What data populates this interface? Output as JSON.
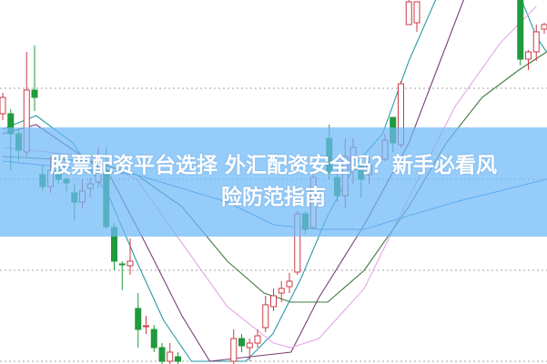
{
  "headline": {
    "line1": "股票配资平台选择 外汇配资安全吗？新手必看风",
    "line2": "险防范指南"
  },
  "colors": {
    "up": "#cc3b45",
    "down": "#1f9a3c",
    "grid": "#b5b5b5",
    "banner": "#6eb9f8",
    "ma_lines": [
      "#2a9aa8",
      "#7a3f7a",
      "#e6a6e6",
      "#3f7a3f",
      "#3a8fd0"
    ]
  },
  "chart_data": {
    "type": "candlestick",
    "title": "",
    "grid": true,
    "gridlines": [
      0,
      10,
      20,
      30
    ],
    "ylim": [
      0,
      40
    ],
    "candles": [
      {
        "t": 0,
        "o": 27.2,
        "c": 29.0,
        "h": 29.5,
        "l": 26.5
      },
      {
        "t": 1,
        "o": 27.2,
        "c": 25.0,
        "h": 27.7,
        "l": 21.0
      },
      {
        "t": 2,
        "o": 25.0,
        "c": 23.2,
        "h": 25.5,
        "l": 22.0
      },
      {
        "t": 3,
        "o": 23.0,
        "c": 29.8,
        "h": 34.0,
        "l": 22.5
      },
      {
        "t": 4,
        "o": 29.8,
        "c": 29.0,
        "h": 34.7,
        "l": 27.5
      },
      {
        "t": 5,
        "o": 20.5,
        "c": 19.2,
        "h": 21.5,
        "l": 18.7
      },
      {
        "t": 6,
        "o": 19.2,
        "c": 21.0,
        "h": 22.5,
        "l": 18.5
      },
      {
        "t": 7,
        "o": 21.0,
        "c": 20.0,
        "h": 21.5,
        "l": 19.5
      },
      {
        "t": 8,
        "o": 20.0,
        "c": 19.6,
        "h": 20.2,
        "l": 18.7
      },
      {
        "t": 9,
        "o": 18.5,
        "c": 17.5,
        "h": 19.5,
        "l": 15.5
      },
      {
        "t": 10,
        "o": 17.5,
        "c": 18.7,
        "h": 20.0,
        "l": 16.8
      },
      {
        "t": 11,
        "o": 19.0,
        "c": 19.5,
        "h": 20.2,
        "l": 18.0
      },
      {
        "t": 12,
        "o": 19.7,
        "c": 20.8,
        "h": 23.5,
        "l": 19.0
      },
      {
        "t": 13,
        "o": 21.0,
        "c": 14.8,
        "h": 23.5,
        "l": 14.5
      },
      {
        "t": 14,
        "o": 14.7,
        "c": 11.0,
        "h": 15.2,
        "l": 10.0
      },
      {
        "t": 15,
        "o": 10.7,
        "c": 10.6,
        "h": 11.0,
        "l": 7.8
      },
      {
        "t": 16,
        "o": 10.5,
        "c": 11.0,
        "h": 13.5,
        "l": 9.5
      },
      {
        "t": 17,
        "o": 5.8,
        "c": 3.5,
        "h": 7.5,
        "l": 1.5
      },
      {
        "t": 18,
        "o": 3.8,
        "c": 3.9,
        "h": 5.0,
        "l": 3.0
      },
      {
        "t": 19,
        "o": 3.5,
        "c": 1.5,
        "h": 4.0,
        "l": 1.0
      },
      {
        "t": 20,
        "o": 1.5,
        "c": 0.0,
        "h": 2.0,
        "l": -1.0
      },
      {
        "t": 21,
        "o": 0.0,
        "c": 1.0,
        "h": 2.0,
        "l": -1.0
      },
      {
        "t": 22,
        "o": 0.5,
        "c": 0.0,
        "h": 1.0,
        "l": -1.0
      },
      {
        "t": 29,
        "o": 0.0,
        "c": 2.5,
        "h": 3.5,
        "l": -1.0
      },
      {
        "t": 30,
        "o": 2.5,
        "c": 1.7,
        "h": 3.0,
        "l": 1.0
      },
      {
        "t": 31,
        "o": 1.5,
        "c": 2.0,
        "h": 2.5,
        "l": 0.0
      },
      {
        "t": 32,
        "o": 2.0,
        "c": 2.8,
        "h": 3.5,
        "l": 1.5
      },
      {
        "t": 33,
        "o": 3.7,
        "c": 6.2,
        "h": 7.2,
        "l": 3.2
      },
      {
        "t": 34,
        "o": 6.0,
        "c": 7.2,
        "h": 8.0,
        "l": 5.5
      },
      {
        "t": 35,
        "o": 7.5,
        "c": 8.0,
        "h": 8.8,
        "l": 6.5
      },
      {
        "t": 36,
        "o": 8.2,
        "c": 8.8,
        "h": 9.7,
        "l": 7.5
      },
      {
        "t": 37,
        "o": 9.8,
        "c": 16.2,
        "h": 16.5,
        "l": 9.5
      },
      {
        "t": 38,
        "o": 16.2,
        "c": 14.5,
        "h": 16.5,
        "l": 14.0
      },
      {
        "t": 39,
        "o": 14.7,
        "c": 20.2,
        "h": 21.0,
        "l": 14.5
      },
      {
        "t": 41,
        "o": 24.5,
        "c": 20.7,
        "h": 26.0,
        "l": 20.0
      },
      {
        "t": 42,
        "o": 20.2,
        "c": 18.2,
        "h": 21.0,
        "l": 17.5
      },
      {
        "t": 43,
        "o": 18.2,
        "c": 22.5,
        "h": 24.5,
        "l": 16.8
      },
      {
        "t": 44,
        "o": 21.0,
        "c": 23.5,
        "h": 24.5,
        "l": 19.5
      },
      {
        "t": 45,
        "o": 21.5,
        "c": 20.0,
        "h": 22.0,
        "l": 18.0
      },
      {
        "t": 46,
        "o": 20.5,
        "c": 21.5,
        "h": 22.5,
        "l": 19.5
      },
      {
        "t": 48,
        "o": 22.2,
        "c": 24.3,
        "h": 25.0,
        "l": 22.0
      },
      {
        "t": 49,
        "o": 26.8,
        "c": 24.0,
        "h": 26.8,
        "l": 23.0
      },
      {
        "t": 50,
        "o": 23.8,
        "c": 30.5,
        "h": 30.8,
        "l": 23.5
      },
      {
        "t": 51,
        "o": 37.0,
        "c": 39.5,
        "h": 40.0,
        "l": 37.0
      },
      {
        "t": 52,
        "o": 37.2,
        "c": 39.5,
        "h": 39.5,
        "l": 36.2
      },
      {
        "t": 65,
        "o": 40.0,
        "c": 33.2,
        "h": 40.0,
        "l": 32.5
      },
      {
        "t": 66,
        "o": 33.2,
        "c": 34.0,
        "h": 34.2,
        "l": 32.0
      },
      {
        "t": 67,
        "o": 34.0,
        "c": 36.2,
        "h": 37.0,
        "l": 33.0
      },
      {
        "t": 68,
        "o": 36.5,
        "c": 37.0,
        "h": 37.2,
        "l": 36.0
      }
    ],
    "moving_averages": [
      {
        "points": [
          [
            0,
            25.5
          ],
          [
            4.2,
            27
          ],
          [
            8.8,
            24
          ],
          [
            13.4,
            18
          ],
          [
            16.8,
            11
          ],
          [
            20.2,
            4.5
          ],
          [
            23.7,
            0
          ],
          [
            30.5,
            0
          ],
          [
            33.9,
            3
          ],
          [
            37.4,
            9
          ],
          [
            40.8,
            16
          ],
          [
            44.2,
            21.5
          ],
          [
            47.7,
            25
          ],
          [
            51,
            33
          ],
          [
            54.5,
            40
          ],
          [
            65,
            40
          ],
          [
            67.1,
            35.5
          ],
          [
            68.3,
            34
          ]
        ]
      },
      {
        "points": [
          [
            0,
            25
          ],
          [
            4.2,
            26
          ],
          [
            13.4,
            20.5
          ],
          [
            17.9,
            13
          ],
          [
            22.5,
            5
          ],
          [
            26,
            0
          ],
          [
            36.2,
            1
          ],
          [
            39.7,
            7
          ],
          [
            45.4,
            15
          ],
          [
            51,
            24
          ],
          [
            54.5,
            32
          ],
          [
            58,
            40
          ]
        ]
      },
      {
        "points": [
          [
            0,
            23.5
          ],
          [
            11.1,
            22.5
          ],
          [
            16.8,
            20
          ],
          [
            22.5,
            13
          ],
          [
            28.2,
            6
          ],
          [
            34,
            2
          ],
          [
            36.2,
            1.5
          ],
          [
            39.7,
            2.5
          ],
          [
            45.4,
            8
          ],
          [
            51,
            18
          ],
          [
            56.8,
            28
          ],
          [
            62.5,
            35
          ],
          [
            67,
            39
          ]
        ]
      },
      {
        "points": [
          [
            0,
            22.5
          ],
          [
            11.1,
            22
          ],
          [
            16.8,
            20.5
          ],
          [
            22.5,
            17
          ],
          [
            28.2,
            11
          ],
          [
            32.8,
            7.5
          ],
          [
            36.2,
            6.5
          ],
          [
            40.8,
            6.5
          ],
          [
            45.4,
            10
          ],
          [
            51,
            17
          ],
          [
            55.7,
            24
          ],
          [
            60.2,
            29
          ],
          [
            64.8,
            32
          ],
          [
            68.3,
            34
          ]
        ]
      },
      {
        "points": [
          [
            0,
            22
          ],
          [
            16.8,
            20.5
          ],
          [
            28.2,
            17.5
          ],
          [
            34,
            15
          ],
          [
            39.7,
            14.5
          ],
          [
            45.4,
            14.5
          ],
          [
            51,
            16
          ],
          [
            56.8,
            17.5
          ],
          [
            63.7,
            19
          ],
          [
            68.3,
            20
          ]
        ]
      }
    ]
  }
}
